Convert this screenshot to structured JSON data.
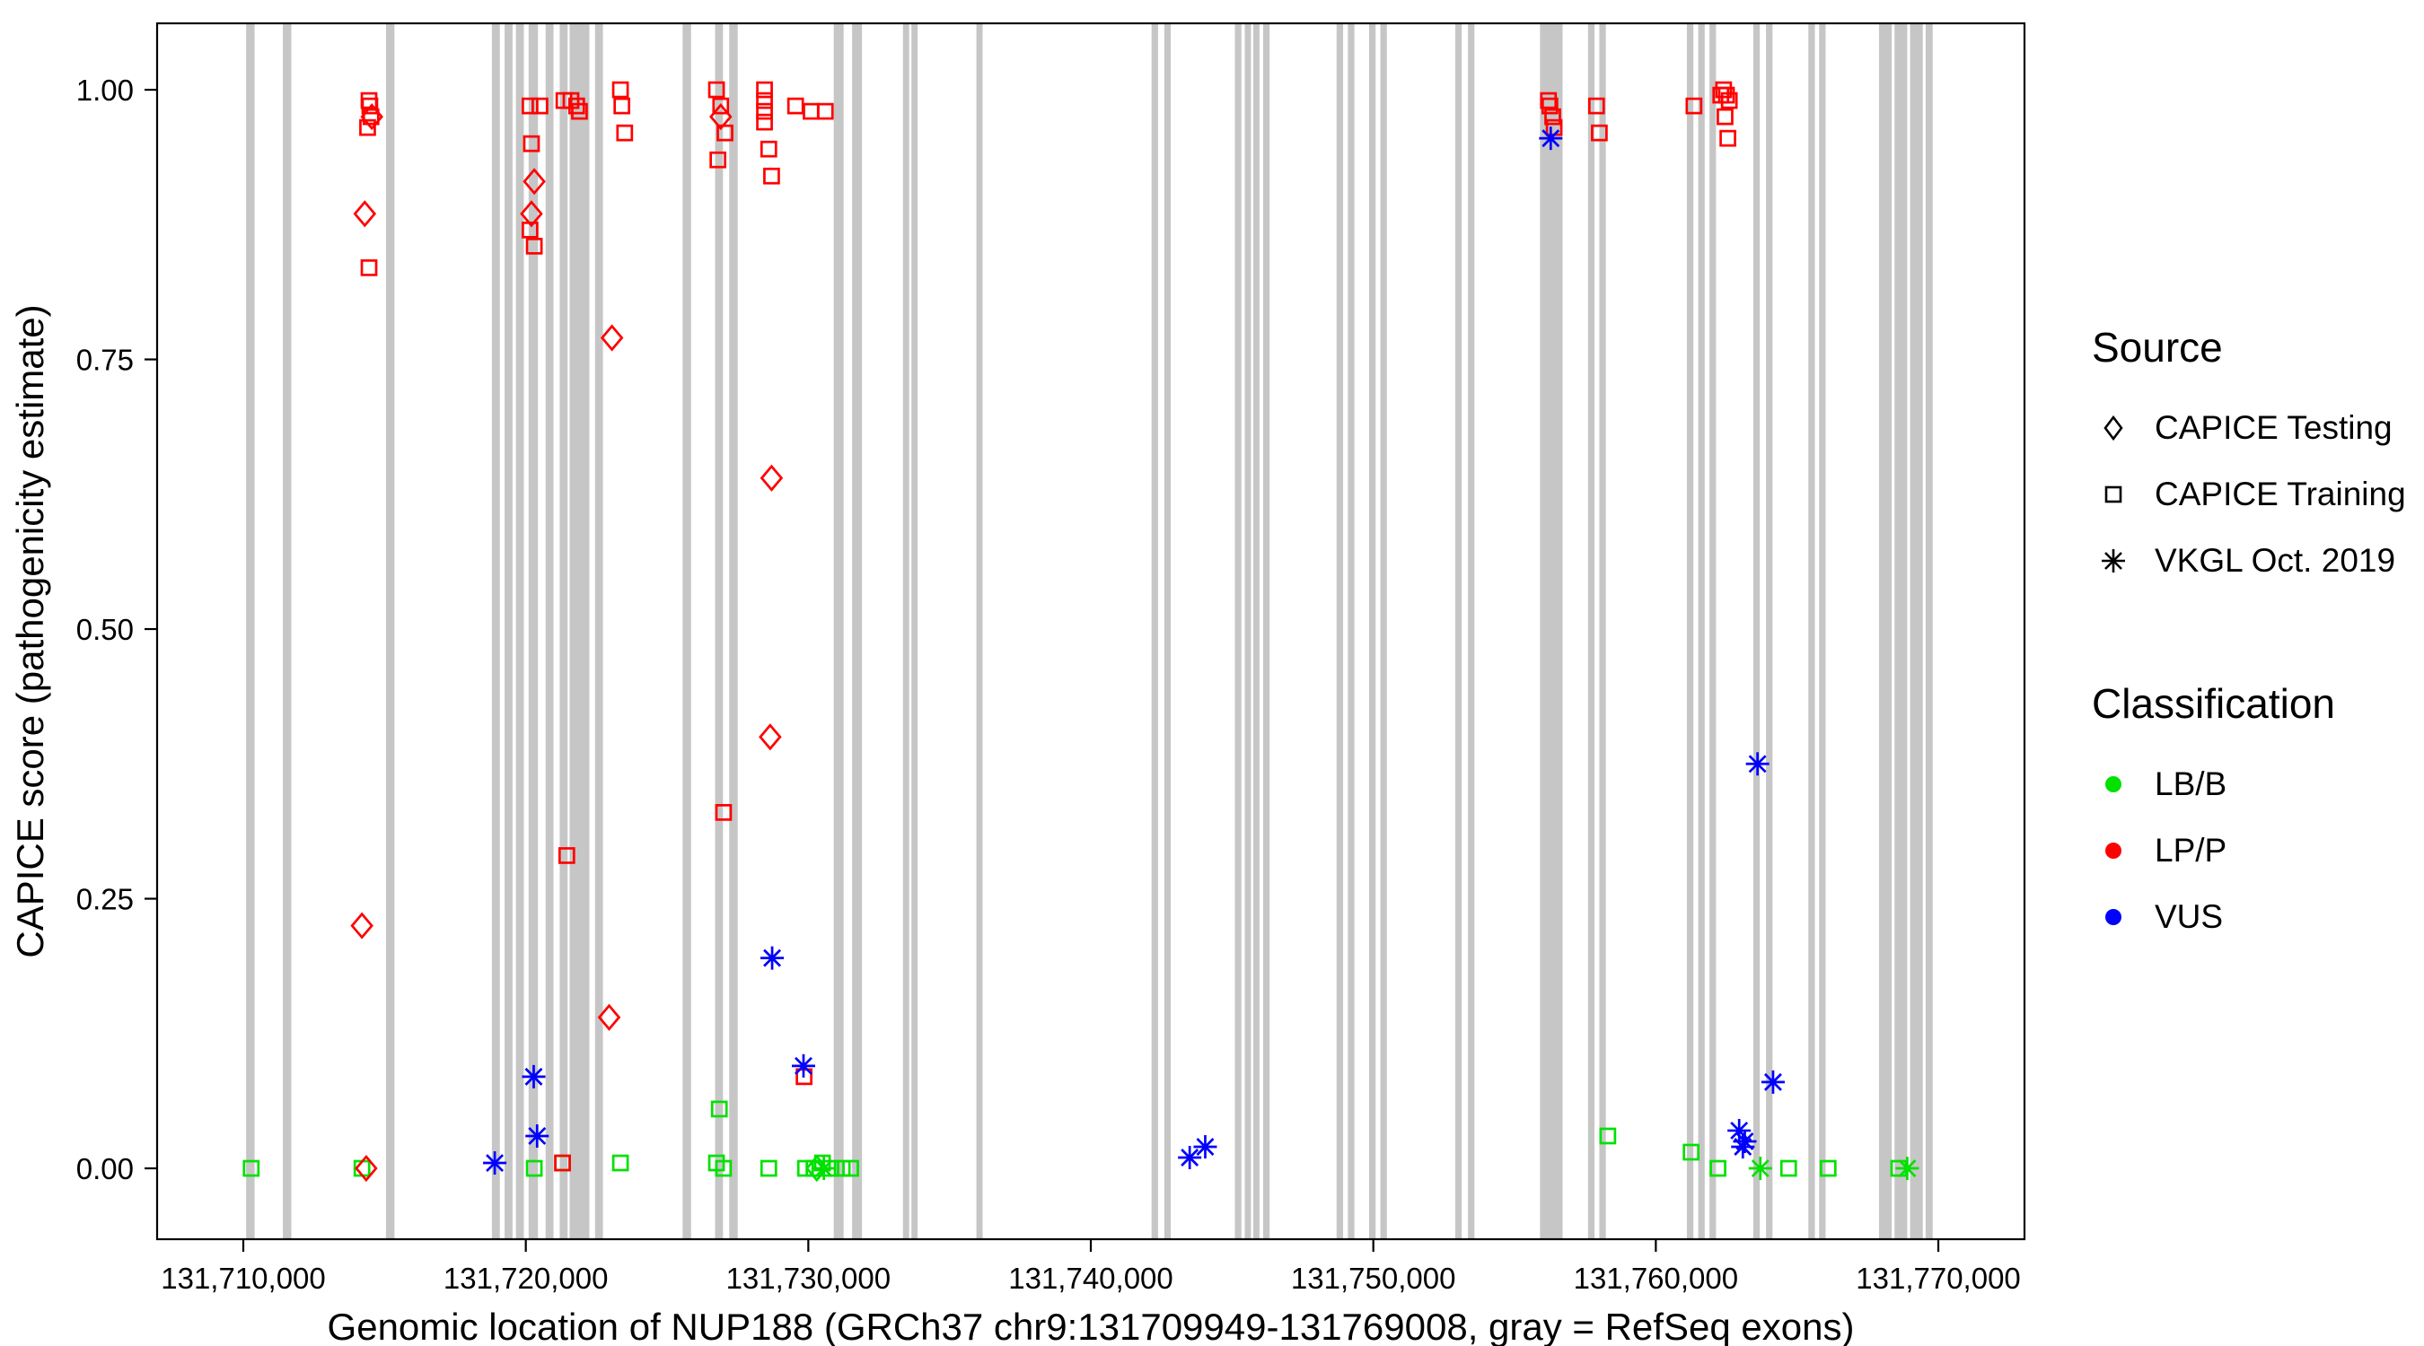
{
  "chart_data": {
    "type": "scatter",
    "title": "",
    "xlabel": "Genomic location of NUP188 (GRCh37 chr9:131709949-131769008, gray = RefSeq exons)",
    "ylabel": "CAPICE score (pathogenicity estimate)",
    "xlim": [
      131706949,
      131773050
    ],
    "ylim": [
      -0.0657,
      1.0616
    ],
    "grid": "off",
    "legend_position": "right",
    "colors": {
      "exon": "#C6C6C6",
      "lbb": "#00E100",
      "lpp": "#FF0000",
      "vus": "#0000FF",
      "border": "#000000"
    },
    "x_ticks": [
      {
        "value": 131710000,
        "label": "131,710,000"
      },
      {
        "value": 131720000,
        "label": "131,720,000"
      },
      {
        "value": 131730000,
        "label": "131,730,000"
      },
      {
        "value": 131740000,
        "label": "131,740,000"
      },
      {
        "value": 131750000,
        "label": "131,750,000"
      },
      {
        "value": 131760000,
        "label": "131,760,000"
      },
      {
        "value": 131770000,
        "label": "131,770,000"
      }
    ],
    "y_ticks": [
      {
        "value": 0.0,
        "label": "0.00"
      },
      {
        "value": 0.25,
        "label": "0.25"
      },
      {
        "value": 0.5,
        "label": "0.50"
      },
      {
        "value": 0.75,
        "label": "0.75"
      },
      {
        "value": 1.0,
        "label": "1.00"
      }
    ],
    "exons": [
      [
        131710100,
        131710400
      ],
      [
        131711400,
        131711700
      ],
      [
        131715050,
        131715350
      ],
      [
        131718800,
        131719080
      ],
      [
        131719250,
        131719530
      ],
      [
        131719650,
        131719930
      ],
      [
        131720100,
        131720430
      ],
      [
        131720700,
        131720980
      ],
      [
        131721200,
        131721480
      ],
      [
        131721550,
        131722250
      ],
      [
        131722450,
        131722730
      ],
      [
        131725550,
        131725850
      ],
      [
        131726700,
        131726980
      ],
      [
        131727200,
        131727500
      ],
      [
        131730900,
        131731250
      ],
      [
        131731550,
        131731900
      ],
      [
        131733350,
        131733570
      ],
      [
        131733650,
        131733870
      ],
      [
        131735950,
        131736170
      ],
      [
        131742150,
        131742380
      ],
      [
        131742600,
        131742830
      ],
      [
        131745100,
        131745330
      ],
      [
        131745450,
        131745670
      ],
      [
        131745750,
        131745970
      ],
      [
        131746100,
        131746330
      ],
      [
        131748700,
        131748930
      ],
      [
        131749100,
        131749330
      ],
      [
        131749850,
        131750080
      ],
      [
        131750250,
        131750480
      ],
      [
        131752900,
        131753130
      ],
      [
        131753350,
        131753580
      ],
      [
        131755900,
        131756700
      ],
      [
        131757600,
        131757830
      ],
      [
        131758000,
        131758230
      ],
      [
        131761100,
        131761330
      ],
      [
        131761500,
        131761730
      ],
      [
        131761900,
        131762130
      ],
      [
        131763450,
        131763680
      ],
      [
        131763900,
        131764130
      ],
      [
        131765400,
        131765630
      ],
      [
        131765780,
        131766010
      ],
      [
        131767900,
        131768350
      ],
      [
        131768450,
        131768900
      ],
      [
        131769000,
        131769450
      ],
      [
        131769550,
        131769800
      ]
    ],
    "series": [
      {
        "id": "lbb-training",
        "name": "CAPICE Training / LB/B",
        "source": "CAPICE Training",
        "classification": "LB/B",
        "marker": "square",
        "color": "#00E100",
        "points": [
          [
            131710280,
            0.0
          ],
          [
            131714200,
            0.0
          ],
          [
            131720300,
            0.0
          ],
          [
            131721300,
            0.005
          ],
          [
            131723350,
            0.005
          ],
          [
            131726750,
            0.005
          ],
          [
            131727000,
            0.0
          ],
          [
            131726850,
            0.055
          ],
          [
            131728600,
            0.0
          ],
          [
            131729900,
            0.0
          ],
          [
            131730200,
            0.0
          ],
          [
            131730500,
            0.005
          ],
          [
            131730800,
            0.0
          ],
          [
            131731200,
            0.0
          ],
          [
            131731500,
            0.0
          ],
          [
            131758300,
            0.03
          ],
          [
            131761250,
            0.015
          ],
          [
            131762200,
            0.0
          ],
          [
            131764700,
            0.0
          ],
          [
            131766100,
            0.0
          ],
          [
            131768600,
            0.0
          ]
        ]
      },
      {
        "id": "lbb-testing",
        "name": "CAPICE Testing / LB/B",
        "source": "CAPICE Testing",
        "classification": "LB/B",
        "marker": "diamond",
        "color": "#00E100",
        "points": [
          [
            131730300,
            0.0
          ]
        ]
      },
      {
        "id": "lpp-training",
        "name": "CAPICE Training / LP/P",
        "source": "CAPICE Training",
        "classification": "LP/P",
        "marker": "square",
        "color": "#FF0000",
        "points": [
          [
            131714450,
            0.99
          ],
          [
            131714480,
            0.985
          ],
          [
            131714520,
            0.975
          ],
          [
            131714400,
            0.965
          ],
          [
            131714450,
            0.835
          ],
          [
            131720150,
            0.985
          ],
          [
            131720500,
            0.985
          ],
          [
            131720200,
            0.95
          ],
          [
            131720150,
            0.87
          ],
          [
            131720300,
            0.855
          ],
          [
            131721350,
            0.99
          ],
          [
            131721600,
            0.99
          ],
          [
            131721800,
            0.985
          ],
          [
            131721900,
            0.98
          ],
          [
            131721450,
            0.29
          ],
          [
            131721300,
            0.005
          ],
          [
            131723350,
            1.0
          ],
          [
            131723400,
            0.985
          ],
          [
            131723500,
            0.96
          ],
          [
            131726750,
            1.0
          ],
          [
            131726900,
            0.985
          ],
          [
            131727050,
            0.96
          ],
          [
            131726800,
            0.935
          ],
          [
            131727000,
            0.33
          ],
          [
            131728450,
            1.0
          ],
          [
            131728450,
            0.99
          ],
          [
            131728450,
            0.98
          ],
          [
            131728450,
            0.97
          ],
          [
            131728600,
            0.945
          ],
          [
            131728700,
            0.92
          ],
          [
            131729850,
            0.085
          ],
          [
            131729550,
            0.985
          ],
          [
            131730100,
            0.98
          ],
          [
            131730600,
            0.98
          ],
          [
            131756200,
            0.99
          ],
          [
            131756250,
            0.985
          ],
          [
            131756350,
            0.975
          ],
          [
            131756400,
            0.965
          ],
          [
            131757900,
            0.985
          ],
          [
            131758000,
            0.96
          ],
          [
            131761350,
            0.985
          ],
          [
            131762300,
            0.995
          ],
          [
            131762400,
            1.0
          ],
          [
            131762500,
            0.995
          ],
          [
            131762600,
            0.99
          ],
          [
            131762450,
            0.975
          ],
          [
            131762550,
            0.955
          ]
        ]
      },
      {
        "id": "lpp-testing",
        "name": "CAPICE Testing / LP/P",
        "source": "CAPICE Testing",
        "classification": "LP/P",
        "marker": "diamond",
        "color": "#FF0000",
        "points": [
          [
            131714550,
            0.975
          ],
          [
            131714300,
            0.885
          ],
          [
            131714200,
            0.225
          ],
          [
            131714350,
            0.0
          ],
          [
            131720300,
            0.915
          ],
          [
            131720200,
            0.885
          ],
          [
            131723050,
            0.77
          ],
          [
            131722950,
            0.14
          ],
          [
            131726900,
            0.975
          ],
          [
            131728700,
            0.64
          ],
          [
            131728650,
            0.4
          ]
        ]
      },
      {
        "id": "lbb-vkgl",
        "name": "VKGL Oct. 2019 / LB/B",
        "source": "VKGL Oct. 2019",
        "classification": "LB/B",
        "marker": "asterisk",
        "color": "#00E100",
        "points": [
          [
            131730550,
            0.0
          ],
          [
            131763700,
            0.0
          ],
          [
            131768900,
            0.0
          ]
        ]
      },
      {
        "id": "vus-vkgl",
        "name": "VKGL Oct. 2019 / VUS",
        "source": "VKGL Oct. 2019",
        "classification": "VUS",
        "marker": "asterisk",
        "color": "#0000FF",
        "points": [
          [
            131718900,
            0.005
          ],
          [
            131720280,
            0.085
          ],
          [
            131720400,
            0.03
          ],
          [
            131728720,
            0.195
          ],
          [
            131729830,
            0.095
          ],
          [
            131743500,
            0.01
          ],
          [
            131744050,
            0.02
          ],
          [
            131756280,
            0.955
          ],
          [
            131763600,
            0.375
          ],
          [
            131764150,
            0.08
          ],
          [
            131762950,
            0.035
          ],
          [
            131763150,
            0.025
          ],
          [
            131763080,
            0.02
          ]
        ]
      }
    ],
    "legend": {
      "source": {
        "title": "Source",
        "items": [
          {
            "marker": "diamond",
            "label": "CAPICE Testing"
          },
          {
            "marker": "square",
            "label": "CAPICE Training"
          },
          {
            "marker": "asterisk",
            "label": "VKGL Oct. 2019"
          }
        ]
      },
      "classification": {
        "title": "Classification",
        "items": [
          {
            "color": "#00E100",
            "label": "LB/B"
          },
          {
            "color": "#FF0000",
            "label": "LP/P"
          },
          {
            "color": "#0000FF",
            "label": "VUS"
          }
        ]
      }
    }
  }
}
